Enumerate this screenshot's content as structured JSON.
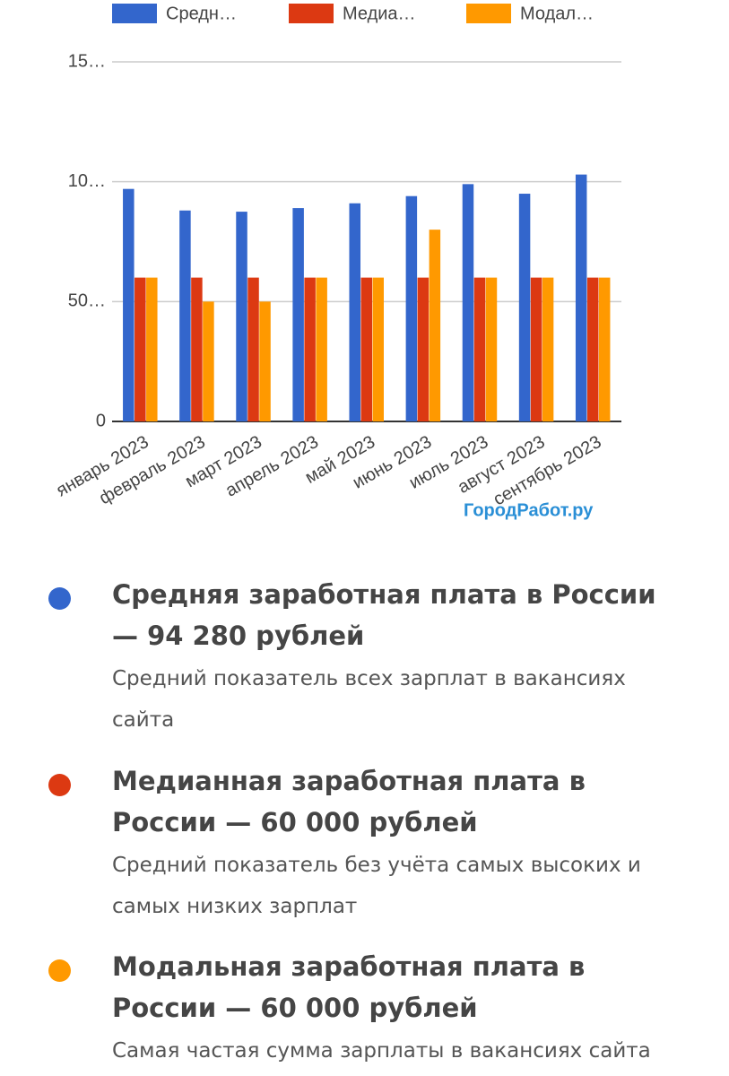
{
  "chart_data": {
    "type": "bar",
    "categories": [
      "январь 2023",
      "февраль 2023",
      "март 2023",
      "апрель 2023",
      "май 2023",
      "июнь 2023",
      "июль 2023",
      "август 2023",
      "сентябрь 2023"
    ],
    "series": [
      {
        "name": "Средн…",
        "color": "#3366cc",
        "values": [
          97000,
          88000,
          87500,
          89000,
          91000,
          94000,
          99000,
          95000,
          103000
        ]
      },
      {
        "name": "Медиа…",
        "color": "#dc3912",
        "values": [
          60000,
          60000,
          60000,
          60000,
          60000,
          60000,
          60000,
          60000,
          60000
        ]
      },
      {
        "name": "Модал…",
        "color": "#ff9900",
        "values": [
          60000,
          50000,
          50000,
          60000,
          60000,
          80000,
          60000,
          60000,
          60000
        ]
      }
    ],
    "ylim": [
      0,
      150000
    ],
    "yticks": [
      0,
      {
        "value": 50000,
        "label": "50…"
      },
      {
        "value": 100000,
        "label": "10…"
      },
      {
        "value": 150000,
        "label": "15…"
      }
    ],
    "grid": true,
    "legend": "top"
  },
  "watermark": "ГородРабот.ру",
  "items": [
    {
      "color": "#3366cc",
      "title": "Средняя заработная плата в России — 94 280 рублей",
      "description": "Средний показатель всех зарплат в вакансиях сайта"
    },
    {
      "color": "#dc3912",
      "title": "Медианная заработная плата в России — 60 000 рублей",
      "description": "Средний показатель без учёта самых высоких и самых низких зарплат"
    },
    {
      "color": "#ff9900",
      "title": "Модальная заработная плата в России — 60 000 рублей",
      "description": "Самая частая сумма зарплаты в вакансиях сайта"
    }
  ]
}
